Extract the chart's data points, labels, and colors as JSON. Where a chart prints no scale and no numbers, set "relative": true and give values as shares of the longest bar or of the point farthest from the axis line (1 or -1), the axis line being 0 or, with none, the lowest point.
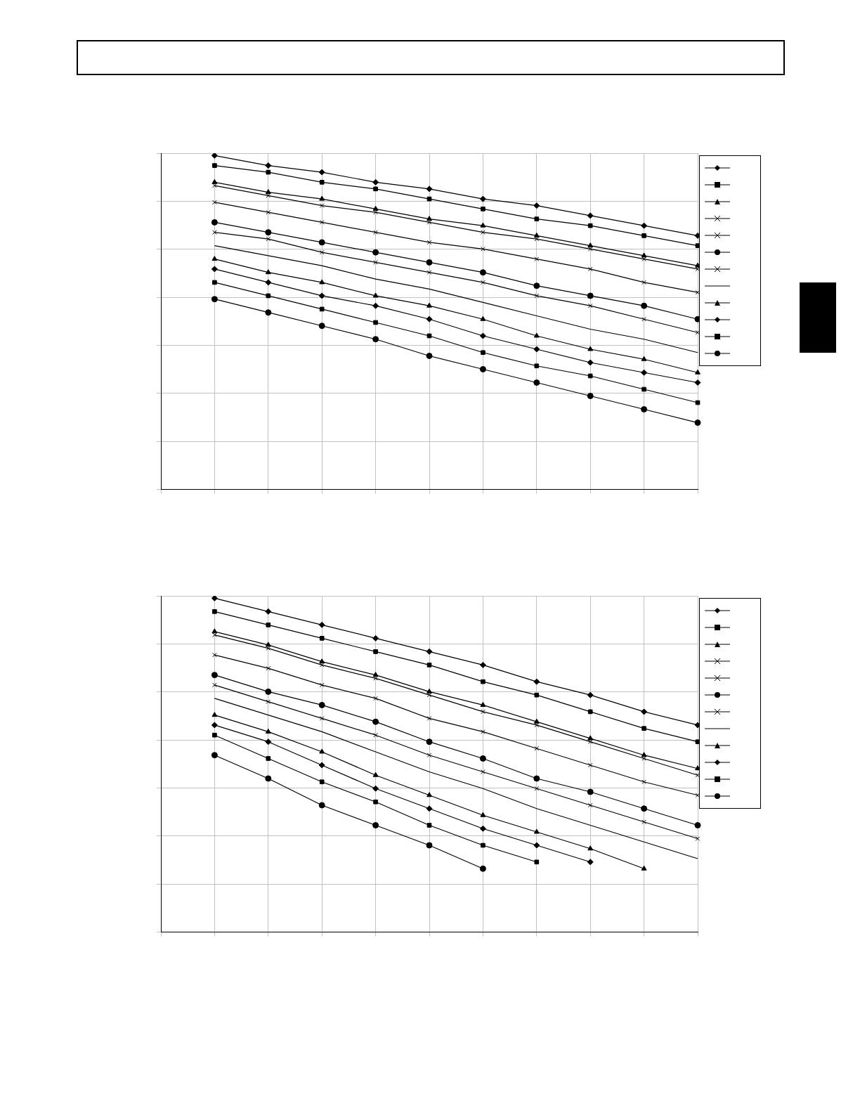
{
  "chart_data": [
    {
      "type": "line",
      "relative": true,
      "grid": true,
      "categories": [
        null,
        null,
        null,
        null,
        null,
        null,
        null,
        null,
        null,
        null,
        null
      ],
      "series": [
        {
          "color": "#000000",
          "marker": "diamond",
          "values": [
            null,
            1.0,
            0.97,
            0.95,
            0.92,
            0.9,
            0.87,
            0.85,
            0.82,
            0.79,
            0.76
          ]
        },
        {
          "color": "#000000",
          "marker": "square",
          "values": [
            null,
            0.97,
            0.95,
            0.92,
            0.9,
            0.87,
            0.84,
            0.81,
            0.79,
            0.76,
            0.73
          ]
        },
        {
          "color": "#000000",
          "marker": "triangle",
          "values": [
            null,
            0.92,
            0.89,
            0.87,
            0.84,
            0.81,
            0.79,
            0.76,
            0.73,
            0.7,
            0.67
          ]
        },
        {
          "color": "#000000",
          "marker": "cross",
          "values": [
            null,
            0.91,
            0.88,
            0.85,
            0.83,
            0.8,
            0.77,
            0.75,
            0.72,
            0.69,
            0.66
          ]
        },
        {
          "color": "#000000",
          "marker": "cross",
          "values": [
            null,
            0.86,
            0.83,
            0.8,
            0.77,
            0.74,
            0.72,
            0.69,
            0.66,
            0.62,
            0.59
          ]
        },
        {
          "color": "#000000",
          "marker": "circle",
          "values": [
            null,
            0.8,
            0.77,
            0.74,
            0.71,
            0.68,
            0.65,
            0.61,
            0.58,
            0.55,
            0.51
          ]
        },
        {
          "color": "#000000",
          "marker": "cross",
          "values": [
            null,
            0.77,
            0.75,
            0.71,
            0.68,
            0.65,
            0.62,
            0.58,
            0.55,
            0.51,
            0.47
          ]
        },
        {
          "color": "#000000",
          "marker": "none",
          "values": [
            null,
            0.73,
            0.7,
            0.67,
            0.63,
            0.6,
            0.56,
            0.52,
            0.48,
            0.45,
            0.41
          ]
        },
        {
          "color": "#000000",
          "marker": "triangle",
          "values": [
            null,
            0.69,
            0.65,
            0.62,
            0.58,
            0.55,
            0.51,
            0.46,
            0.42,
            0.39,
            0.35
          ]
        },
        {
          "color": "#000000",
          "marker": "diamond",
          "values": [
            null,
            0.66,
            0.62,
            0.58,
            0.55,
            0.51,
            0.46,
            0.42,
            0.38,
            0.35,
            0.32
          ]
        },
        {
          "color": "#000000",
          "marker": "square",
          "values": [
            null,
            0.62,
            0.58,
            0.54,
            0.5,
            0.46,
            0.41,
            0.37,
            0.34,
            0.3,
            0.26
          ]
        },
        {
          "color": "#000000",
          "marker": "circle",
          "values": [
            null,
            0.57,
            0.53,
            0.49,
            0.45,
            0.4,
            0.36,
            0.32,
            0.28,
            0.24,
            0.2
          ]
        }
      ]
    },
    {
      "type": "line",
      "relative": true,
      "grid": true,
      "categories": [
        null,
        null,
        null,
        null,
        null,
        null,
        null,
        null,
        null,
        null,
        null
      ],
      "series": [
        {
          "color": "#000000",
          "marker": "diamond",
          "values": [
            null,
            1.0,
            0.96,
            0.92,
            0.88,
            0.84,
            0.8,
            0.75,
            0.71,
            0.66,
            0.62
          ]
        },
        {
          "color": "#000000",
          "marker": "square",
          "values": [
            null,
            0.96,
            0.92,
            0.88,
            0.84,
            0.8,
            0.75,
            0.71,
            0.66,
            0.61,
            0.57
          ]
        },
        {
          "color": "#000000",
          "marker": "triangle",
          "values": [
            null,
            0.9,
            0.86,
            0.81,
            0.77,
            0.72,
            0.68,
            0.63,
            0.58,
            0.53,
            0.49
          ]
        },
        {
          "color": "#000000",
          "marker": "cross",
          "values": [
            null,
            0.89,
            0.85,
            0.8,
            0.76,
            0.71,
            0.66,
            0.62,
            0.57,
            0.52,
            0.47
          ]
        },
        {
          "color": "#000000",
          "marker": "cross",
          "values": [
            null,
            0.83,
            0.79,
            0.74,
            0.7,
            0.64,
            0.6,
            0.55,
            0.5,
            0.45,
            0.41
          ]
        },
        {
          "color": "#000000",
          "marker": "circle",
          "values": [
            null,
            0.77,
            0.72,
            0.68,
            0.63,
            0.57,
            0.52,
            0.46,
            0.42,
            0.37,
            0.32
          ]
        },
        {
          "color": "#000000",
          "marker": "cross",
          "values": [
            null,
            0.74,
            0.69,
            0.64,
            0.59,
            0.53,
            0.48,
            0.43,
            0.38,
            0.33,
            0.28
          ]
        },
        {
          "color": "#000000",
          "marker": "none",
          "values": [
            null,
            0.7,
            0.65,
            0.6,
            0.54,
            0.48,
            0.43,
            0.37,
            0.32,
            0.27,
            0.22
          ]
        },
        {
          "color": "#000000",
          "marker": "triangle",
          "values": [
            null,
            0.65,
            0.6,
            0.54,
            0.47,
            0.41,
            0.35,
            0.3,
            0.25,
            0.19,
            null
          ]
        },
        {
          "color": "#000000",
          "marker": "diamond",
          "values": [
            null,
            0.62,
            0.57,
            0.5,
            0.43,
            0.37,
            0.31,
            0.26,
            0.21,
            null,
            null
          ]
        },
        {
          "color": "#000000",
          "marker": "square",
          "values": [
            null,
            0.59,
            0.52,
            0.45,
            0.39,
            0.32,
            0.26,
            0.21,
            null,
            null,
            null
          ]
        },
        {
          "color": "#000000",
          "marker": "circle",
          "values": [
            null,
            0.53,
            0.46,
            0.38,
            0.32,
            0.26,
            0.19,
            null,
            null,
            null,
            null
          ]
        }
      ]
    }
  ]
}
